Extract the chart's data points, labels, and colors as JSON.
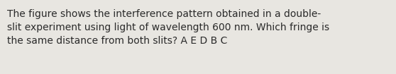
{
  "text_line1": "The figure shows the interference pattern obtained in a double-",
  "text_line2": "slit experiment using light of wavelength 600 nm. Which fringe is",
  "text_line3": "the same distance from both slits? A E D B C",
  "background_color": "#e8e6e1",
  "text_color": "#2a2a2a",
  "font_size": 10.0,
  "fig_width": 5.58,
  "fig_height": 1.05,
  "dpi": 100
}
